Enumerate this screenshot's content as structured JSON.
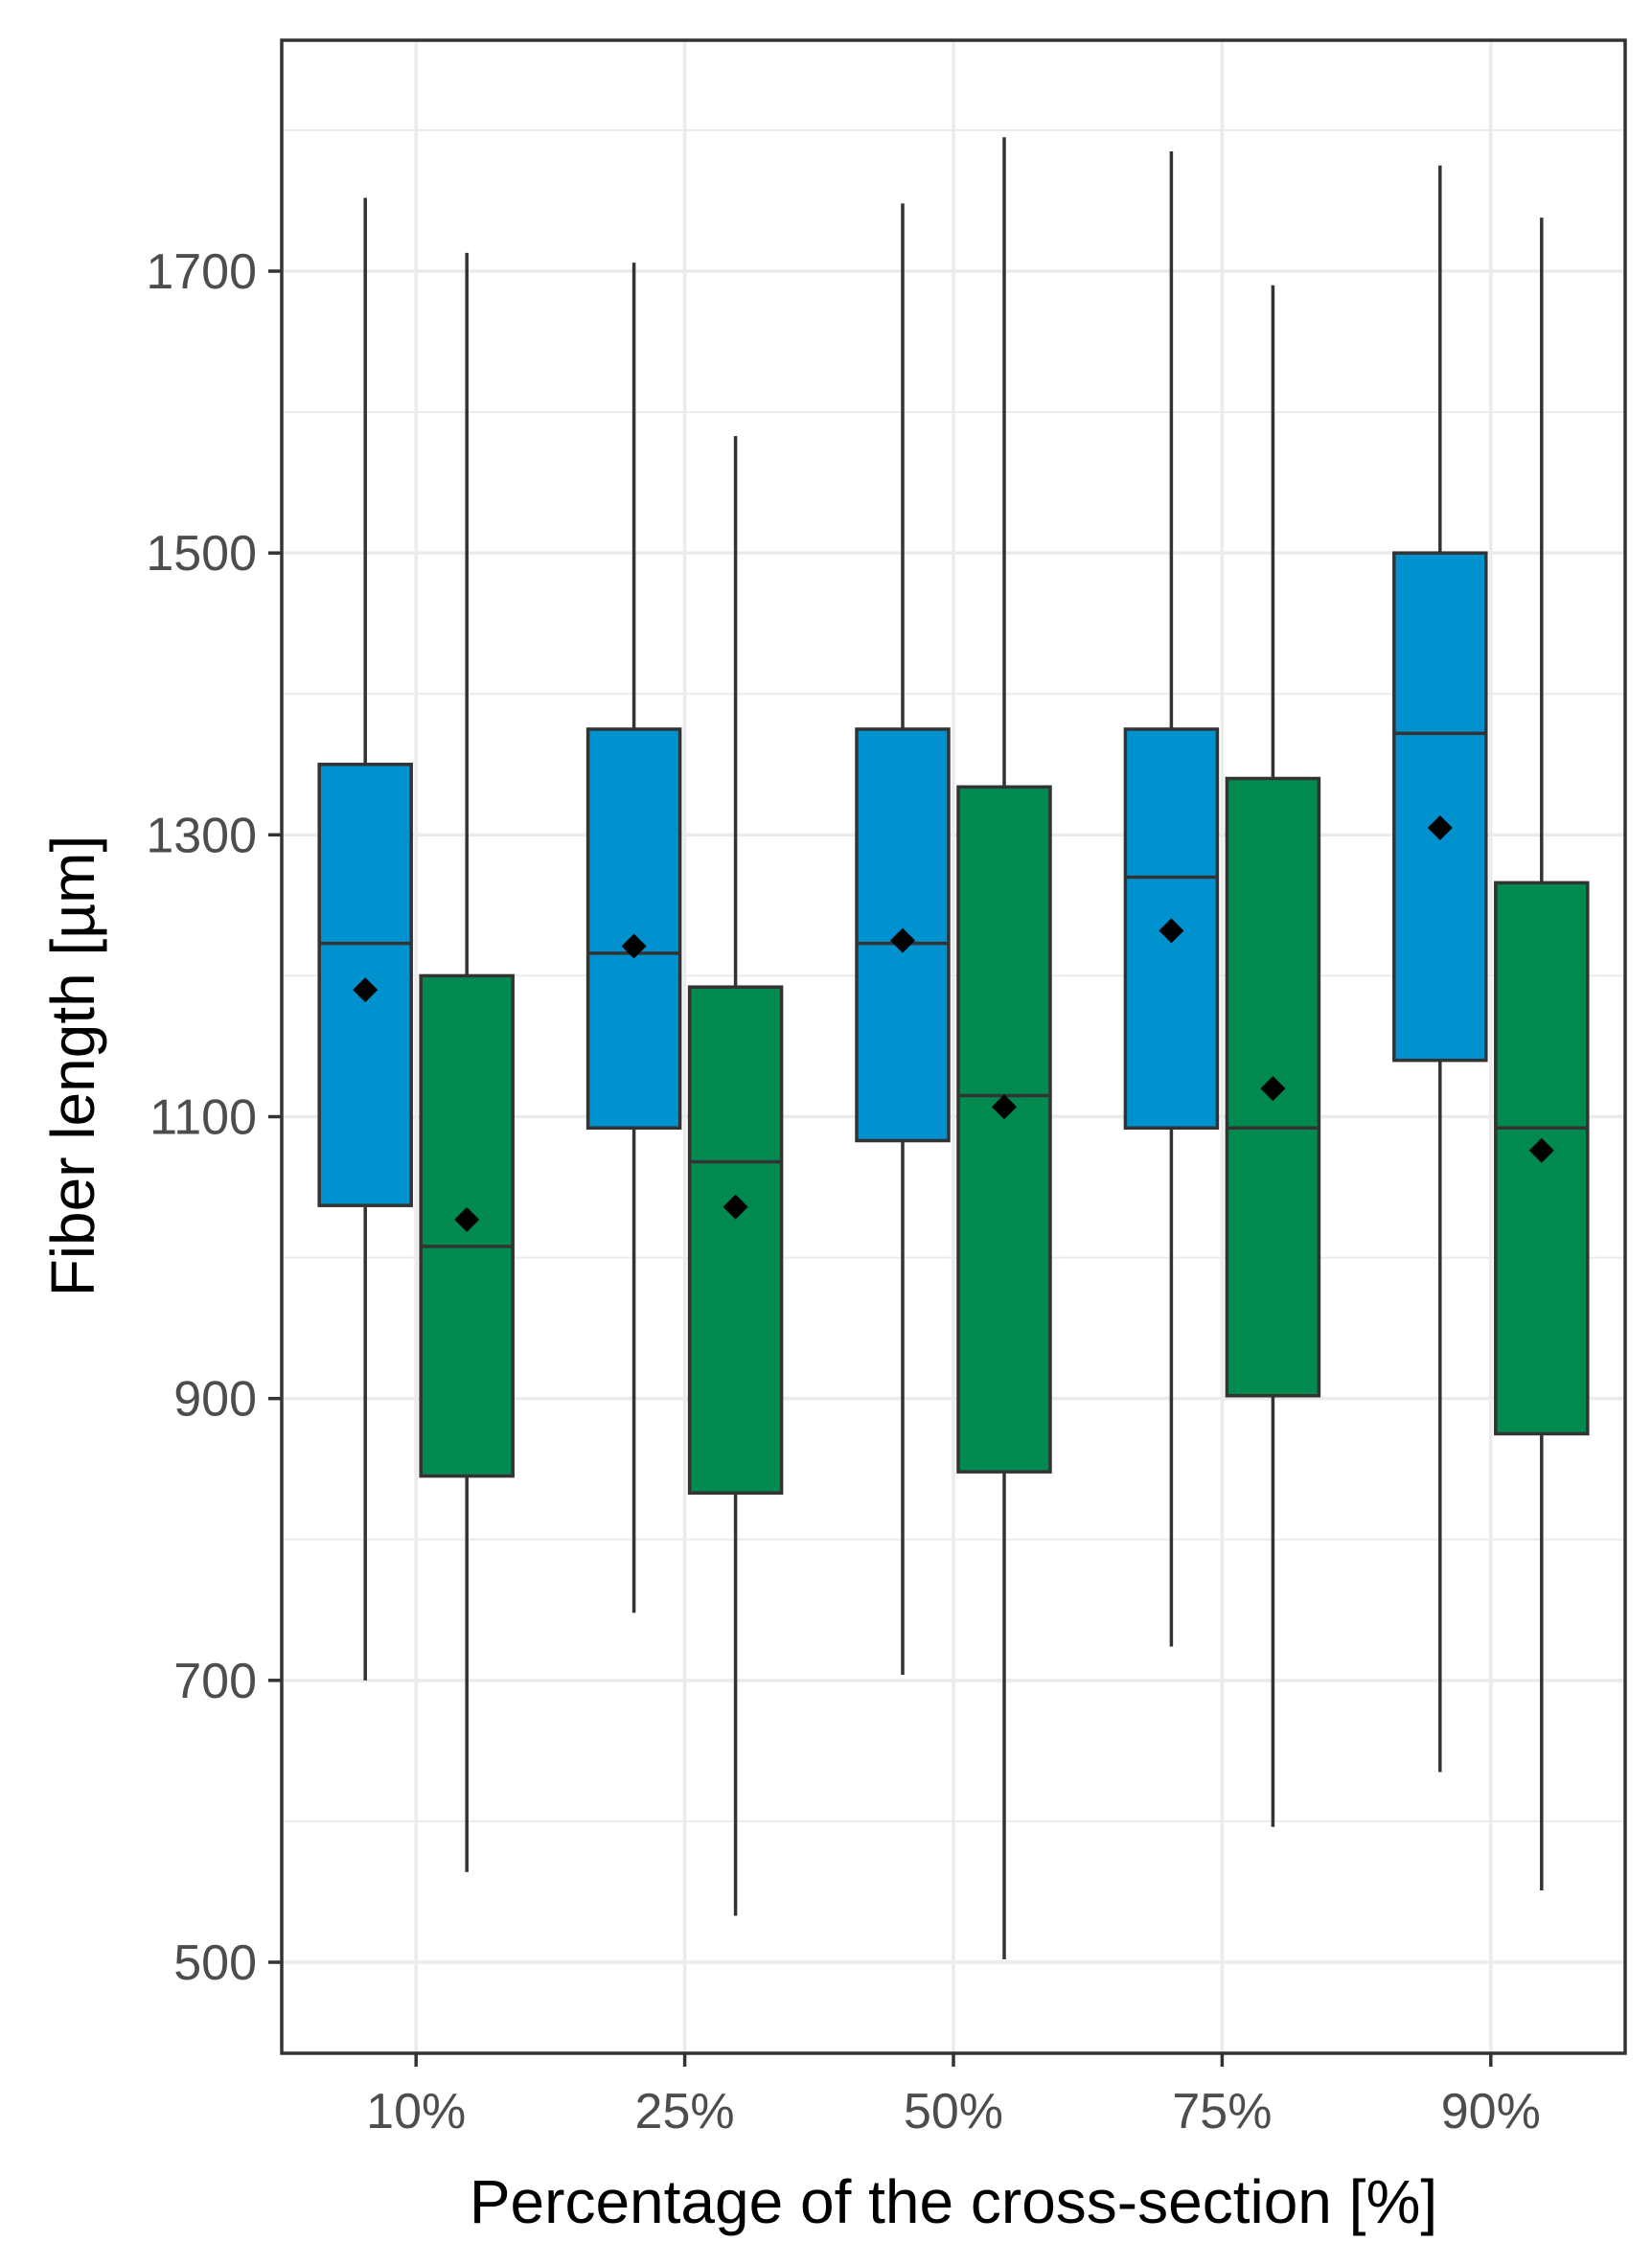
{
  "chart_data": {
    "type": "boxplot",
    "title": "",
    "xlabel": "Percentage of the cross-section [%]",
    "ylabel": "Fiber length [µm]",
    "categories": [
      "10%",
      "25%",
      "50%",
      "75%",
      "90%"
    ],
    "ylim": [
      400,
      1850
    ],
    "y_ticks": [
      500,
      700,
      900,
      1100,
      1300,
      1500,
      1700
    ],
    "grid": true,
    "legend": "none",
    "colors": {
      "series_a": "#0092CF",
      "series_b": "#008A50",
      "outline": "#333333",
      "mean_marker": "#000000"
    },
    "series": [
      {
        "name": "blue",
        "boxes": [
          {
            "category": "10%",
            "min": 700,
            "q1": 1037,
            "median": 1223,
            "q3": 1350,
            "max": 1752,
            "mean": 1190
          },
          {
            "category": "25%",
            "min": 748,
            "q1": 1092,
            "median": 1216,
            "q3": 1375,
            "max": 1706,
            "mean": 1221
          },
          {
            "category": "50%",
            "min": 704,
            "q1": 1083,
            "median": 1223,
            "q3": 1375,
            "max": 1748,
            "mean": 1225
          },
          {
            "category": "75%",
            "min": 724,
            "q1": 1092,
            "median": 1270,
            "q3": 1375,
            "max": 1785,
            "mean": 1232
          },
          {
            "category": "90%",
            "min": 635,
            "q1": 1140,
            "median": 1372,
            "q3": 1500,
            "max": 1775,
            "mean": 1305
          }
        ]
      },
      {
        "name": "green",
        "boxes": [
          {
            "category": "10%",
            "min": 564,
            "q1": 845,
            "median": 1008,
            "q3": 1200,
            "max": 1713,
            "mean": 1027
          },
          {
            "category": "25%",
            "min": 533,
            "q1": 833,
            "median": 1068,
            "q3": 1192,
            "max": 1583,
            "mean": 1036
          },
          {
            "category": "50%",
            "min": 502,
            "q1": 848,
            "median": 1115,
            "q3": 1334,
            "max": 1795,
            "mean": 1107
          },
          {
            "category": "75%",
            "min": 596,
            "q1": 902,
            "median": 1092,
            "q3": 1340,
            "max": 1690,
            "mean": 1120
          },
          {
            "category": "90%",
            "min": 551,
            "q1": 875,
            "median": 1092,
            "q3": 1266,
            "max": 1738,
            "mean": 1076
          }
        ]
      }
    ]
  }
}
